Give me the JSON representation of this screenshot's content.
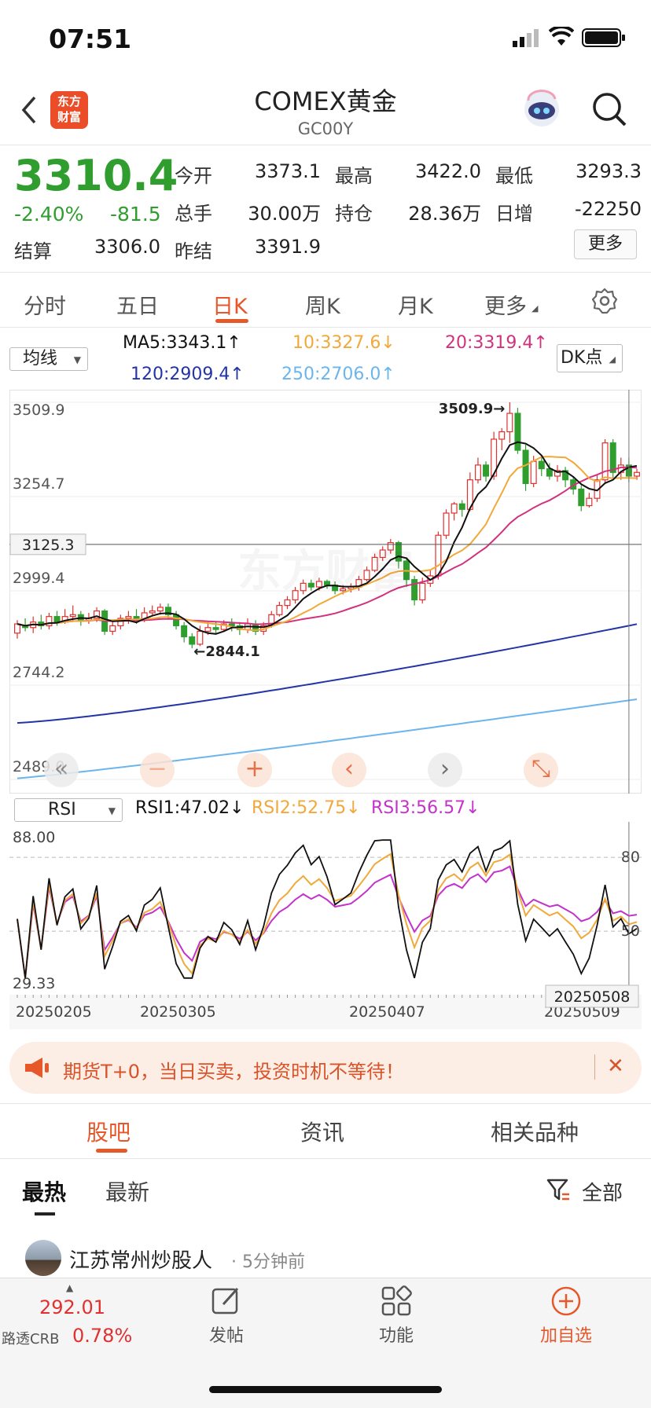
{
  "status_bar": {
    "time": "07:51"
  },
  "header": {
    "logo": "东方\n财富",
    "title": "COMEX黄金",
    "code": "GC00Y",
    "back_icon": "chevron-left-icon",
    "search_icon": "search-icon"
  },
  "quote": {
    "price": "3310.4",
    "change_pct": "-2.40%",
    "change": "-81.5",
    "open_label": "今开",
    "open": "3373.1",
    "high_label": "最高",
    "high": "3422.0",
    "low_label": "最低",
    "low": "3293.3",
    "volume_label": "总手",
    "volume": "30.00万",
    "position_label": "持仓",
    "position": "28.36万",
    "daily_inc_label": "日增",
    "daily_inc": "-22250",
    "settle_label": "结算",
    "settle": "3306.0",
    "prev_settle_label": "昨结",
    "prev_settle": "3391.9",
    "more": "更多"
  },
  "tabs": [
    "分时",
    "五日",
    "日K",
    "周K",
    "月K",
    "更多"
  ],
  "ma_bar": {
    "select": "均线",
    "ma5": "MA5:3343.1↑",
    "ma10": "10:3327.6↓",
    "ma20": "20:3319.4↑",
    "ma120": "120:2909.4↑",
    "ma250": "250:2706.0↑",
    "dk": "DK点"
  },
  "colors": {
    "up": "#e0312f",
    "down": "#2f9e2f",
    "accent": "#e6572a",
    "ma5": "#111111",
    "ma10": "#f0a93a",
    "ma20": "#d2317e",
    "ma120": "#2335a6",
    "ma250": "#6cb5ec"
  },
  "chart_data": [
    {
      "type": "candlestick",
      "y_ticks": [
        "3509.9",
        "3254.7",
        "2999.4",
        "2744.2",
        "2489.0"
      ],
      "ylim": [
        2489.0,
        3509.9
      ],
      "crosshair_price": "3125.3",
      "high_marker": "3509.9→",
      "low_marker": "←2844.1",
      "candles": [
        [
          2885,
          2910,
          2870,
          2920
        ],
        [
          2905,
          2900,
          2890,
          2925
        ],
        [
          2900,
          2915,
          2885,
          2930
        ],
        [
          2915,
          2905,
          2895,
          2935
        ],
        [
          2905,
          2930,
          2895,
          2940
        ],
        [
          2930,
          2915,
          2905,
          2945
        ],
        [
          2915,
          2930,
          2910,
          2950
        ],
        [
          2930,
          2935,
          2915,
          2960
        ],
        [
          2935,
          2920,
          2905,
          2945
        ],
        [
          2920,
          2925,
          2910,
          2940
        ],
        [
          2925,
          2945,
          2915,
          2955
        ],
        [
          2945,
          2890,
          2880,
          2950
        ],
        [
          2890,
          2905,
          2880,
          2920
        ],
        [
          2905,
          2925,
          2895,
          2935
        ],
        [
          2925,
          2930,
          2910,
          2945
        ],
        [
          2930,
          2920,
          2910,
          2950
        ],
        [
          2920,
          2940,
          2915,
          2955
        ],
        [
          2940,
          2945,
          2930,
          2960
        ],
        [
          2945,
          2955,
          2935,
          2965
        ],
        [
          2955,
          2935,
          2925,
          2965
        ],
        [
          2935,
          2905,
          2895,
          2945
        ],
        [
          2905,
          2875,
          2860,
          2915
        ],
        [
          2875,
          2855,
          2844,
          2885
        ],
        [
          2855,
          2890,
          2850,
          2905
        ],
        [
          2890,
          2900,
          2880,
          2915
        ],
        [
          2900,
          2895,
          2885,
          2915
        ],
        [
          2895,
          2910,
          2890,
          2920
        ],
        [
          2910,
          2905,
          2890,
          2925
        ],
        [
          2905,
          2895,
          2880,
          2915
        ],
        [
          2895,
          2910,
          2885,
          2925
        ],
        [
          2910,
          2890,
          2880,
          2920
        ],
        [
          2890,
          2905,
          2880,
          2915
        ],
        [
          2905,
          2935,
          2900,
          2945
        ],
        [
          2935,
          2960,
          2930,
          2970
        ],
        [
          2960,
          2975,
          2950,
          2985
        ],
        [
          2975,
          3000,
          2965,
          3010
        ],
        [
          3000,
          3020,
          2990,
          3030
        ],
        [
          3020,
          3010,
          3000,
          3030
        ],
        [
          3010,
          3025,
          3000,
          3035
        ],
        [
          3025,
          3015,
          3005,
          3030
        ],
        [
          3015,
          3000,
          2990,
          3025
        ],
        [
          3000,
          3005,
          2990,
          3015
        ],
        [
          3005,
          3010,
          2995,
          3020
        ],
        [
          3010,
          3030,
          3000,
          3040
        ],
        [
          3030,
          3055,
          3025,
          3065
        ],
        [
          3055,
          3090,
          3050,
          3100
        ],
        [
          3090,
          3110,
          3080,
          3120
        ],
        [
          3110,
          3130,
          3100,
          3140
        ],
        [
          3130,
          3080,
          3060,
          3135
        ],
        [
          3080,
          3030,
          3010,
          3090
        ],
        [
          3030,
          2975,
          2960,
          3040
        ],
        [
          2975,
          3020,
          2965,
          3035
        ],
        [
          3020,
          3040,
          3010,
          3055
        ],
        [
          3040,
          3150,
          3030,
          3160
        ],
        [
          3150,
          3210,
          3140,
          3220
        ],
        [
          3210,
          3235,
          3190,
          3240
        ],
        [
          3235,
          3220,
          3200,
          3245
        ],
        [
          3220,
          3300,
          3215,
          3320
        ],
        [
          3300,
          3340,
          3290,
          3360
        ],
        [
          3340,
          3310,
          3295,
          3350
        ],
        [
          3310,
          3410,
          3300,
          3430
        ],
        [
          3410,
          3430,
          3380,
          3440
        ],
        [
          3430,
          3480,
          3400,
          3509.9
        ],
        [
          3480,
          3380,
          3370,
          3495
        ],
        [
          3380,
          3290,
          3270,
          3395
        ],
        [
          3290,
          3350,
          3280,
          3365
        ],
        [
          3350,
          3330,
          3310,
          3360
        ],
        [
          3330,
          3310,
          3300,
          3345
        ],
        [
          3310,
          3325,
          3295,
          3340
        ],
        [
          3325,
          3300,
          3280,
          3335
        ],
        [
          3300,
          3275,
          3260,
          3310
        ],
        [
          3275,
          3230,
          3215,
          3285
        ],
        [
          3230,
          3250,
          3225,
          3265
        ],
        [
          3250,
          3300,
          3240,
          3315
        ],
        [
          3300,
          3400,
          3290,
          3410
        ],
        [
          3400,
          3320,
          3300,
          3410
        ],
        [
          3320,
          3340,
          3300,
          3360
        ],
        [
          3340,
          3310,
          3293,
          3360
        ],
        [
          3310,
          3320,
          3300,
          3330
        ]
      ]
    },
    {
      "type": "line",
      "name": "RSI",
      "select": "RSI",
      "labels": {
        "rsi1": "RSI1:47.02↓",
        "rsi2": "RSI2:52.75↓",
        "rsi3": "RSI3:56.57↓"
      },
      "y_ticks": [
        "88.00",
        "29.33"
      ],
      "right_ticks": [
        "80",
        "50"
      ],
      "ylim": [
        29.33,
        88.0
      ],
      "x_labels": [
        "20250205",
        "20250305",
        "20250407",
        "20250509"
      ],
      "crosshair_date": "20250508"
    }
  ],
  "chart_tools": [
    "double-left-icon",
    "minus-icon",
    "plus-icon",
    "left-icon",
    "right-icon",
    "expand-icon"
  ],
  "promo": {
    "text": "期货T+0，当日买卖，投资时机不等待！",
    "close": "✕"
  },
  "section_tabs": [
    "股吧",
    "资讯",
    "相关品种"
  ],
  "feed": {
    "sort_hot": "最热",
    "sort_new": "最新",
    "filter": "全部",
    "first_post_user": "江苏常州炒股人",
    "first_post_time": "· 5分钟前"
  },
  "bottom_bar": {
    "index_value": "292.01",
    "index_name": "路透CRB",
    "index_change": "0.78%",
    "post": "发帖",
    "functions": "功能",
    "add_watch": "加自选"
  }
}
